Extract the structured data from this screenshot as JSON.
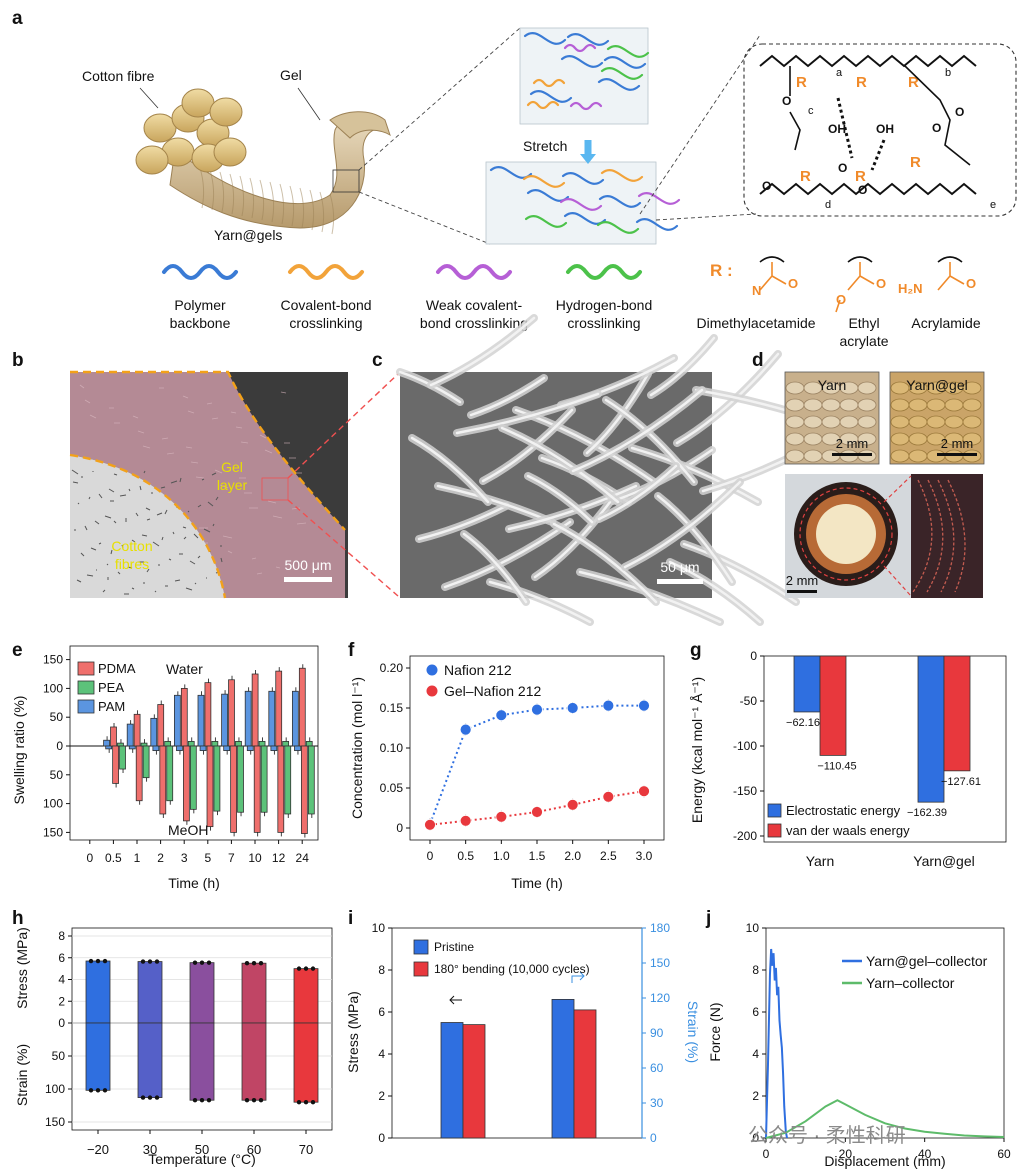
{
  "panels": {
    "a": "a",
    "b": "b",
    "c": "c",
    "d": "d",
    "e": "e",
    "f": "f",
    "g": "g",
    "h": "h",
    "i": "i",
    "j": "j"
  },
  "panel_a": {
    "cotton_fibre": "Cotton fibre",
    "gel": "Gel",
    "yarn_gels": "Yarn@gels",
    "stretch": "Stretch",
    "legend": [
      {
        "line1": "Polymer",
        "line2": "backbone",
        "color": "#3a7bd5"
      },
      {
        "line1": "Covalent-bond",
        "line2": "crosslinking",
        "color": "#f2a33a"
      },
      {
        "line1": "Weak covalent-",
        "line2": "bond crosslinking",
        "color": "#b65fd6"
      },
      {
        "line1": "Hydrogen-bond",
        "line2": "crosslinking",
        "color": "#4cc24a"
      }
    ],
    "r_label": "R :",
    "r_groups": [
      {
        "line1": "Dimethylacetamide",
        "line2": ""
      },
      {
        "line1": "Ethyl",
        "line2": "acrylate"
      },
      {
        "line1": "Acrylamide",
        "line2": ""
      }
    ],
    "chem": {
      "R": "R",
      "O": "O",
      "OH": "OH",
      "N": "N",
      "H2N": "H₂N",
      "a": "a",
      "b": "b",
      "c": "c",
      "d": "d",
      "e": "e"
    }
  },
  "panel_b": {
    "gel_layer_1": "Gel",
    "gel_layer_2": "layer",
    "cotton_1": "Cotton",
    "cotton_2": "fibres",
    "scale": "500 μm"
  },
  "panel_c": {
    "scale": "50 μm"
  },
  "panel_d": {
    "yarn": "Yarn",
    "yarn_gel": "Yarn@gel",
    "scale1": "2 mm",
    "scale2": "2 mm",
    "scale3": "2 mm"
  },
  "colors": {
    "blue": "#2f6fe0",
    "red": "#e8383d",
    "green": "#5dbb6a",
    "pdma": "#ef6f6c",
    "pea": "#5cc27a",
    "pam": "#5b95e0",
    "axis_blue": "#3a8fe0"
  },
  "chart_data": [
    {
      "panel": "e",
      "type": "bar",
      "ylabel": "Swelling ratio (%)",
      "xlabel": "Time (h)",
      "categories": [
        "0",
        "0.5",
        "1",
        "2",
        "3",
        "5",
        "7",
        "10",
        "12",
        "24"
      ],
      "ylim_upper": [
        0,
        150
      ],
      "ylim_lower": [
        0,
        150
      ],
      "upper_ticks": [
        "150",
        "100",
        "50",
        "0"
      ],
      "lower_ticks": [
        "50",
        "100",
        "150"
      ],
      "text_upper": "Water",
      "text_lower": "MeOH",
      "series": [
        {
          "name": "PDMA",
          "water": [
            0,
            33,
            55,
            72,
            100,
            110,
            115,
            125,
            130,
            135
          ],
          "meoh": [
            0,
            65,
            95,
            118,
            130,
            140,
            150,
            150,
            150,
            152
          ]
        },
        {
          "name": "PEA",
          "water": [
            0,
            5,
            5,
            8,
            8,
            8,
            8,
            8,
            8,
            8
          ],
          "meoh": [
            0,
            40,
            55,
            95,
            110,
            113,
            115,
            115,
            118,
            118
          ]
        },
        {
          "name": "PAM",
          "water": [
            0,
            10,
            38,
            48,
            88,
            88,
            90,
            95,
            95,
            95
          ],
          "meoh": [
            0,
            5,
            5,
            8,
            8,
            8,
            8,
            8,
            8,
            8
          ]
        }
      ]
    },
    {
      "panel": "f",
      "type": "scatter",
      "ylabel": "Concentration (mol l⁻¹)",
      "xlabel": "Time (h)",
      "xlim": [
        0,
        3.0
      ],
      "ylim": [
        0,
        0.2
      ],
      "xticks": [
        "0",
        "0.5",
        "1.0",
        "1.5",
        "2.0",
        "2.5",
        "3.0"
      ],
      "yticks": [
        "0",
        "0.05",
        "0.10",
        "0.15",
        "0.20"
      ],
      "series": [
        {
          "name": "Nafion 212",
          "x": [
            0,
            0.5,
            1.0,
            1.5,
            2.0,
            2.5,
            3.0
          ],
          "y": [
            0.005,
            0.123,
            0.141,
            0.148,
            0.15,
            0.153,
            0.153
          ]
        },
        {
          "name": "Gel–Nafion 212",
          "x": [
            0,
            0.5,
            1.0,
            1.5,
            2.0,
            2.5,
            3.0
          ],
          "y": [
            0.004,
            0.009,
            0.014,
            0.02,
            0.029,
            0.039,
            0.046
          ]
        }
      ]
    },
    {
      "panel": "g",
      "type": "bar",
      "ylabel": "Energy (kcal mol⁻¹ Å⁻¹)",
      "categories": [
        "Yarn",
        "Yarn@gel"
      ],
      "ylim": [
        -200,
        0
      ],
      "yticks": [
        "0",
        "-50",
        "-100",
        "-150",
        "-200"
      ],
      "series": [
        {
          "name": "Electrostatic energy",
          "values": [
            -62.16,
            -162.39
          ]
        },
        {
          "name": "van der waals energy",
          "values": [
            -110.45,
            -127.61
          ]
        }
      ],
      "value_labels": [
        [
          "−62.16",
          "−110.45"
        ],
        [
          "−162.39",
          "−127.61"
        ]
      ]
    },
    {
      "panel": "h",
      "type": "bar",
      "xlabel": "Temperature (°C)",
      "ylabel_upper": "Stress (MPa)",
      "ylabel_lower": "Strain (%)",
      "categories": [
        "−20",
        "30",
        "50",
        "60",
        "70"
      ],
      "stress": [
        5.7,
        5.65,
        5.55,
        5.5,
        5.0
      ],
      "strain": [
        102,
        113,
        117,
        117,
        120
      ],
      "upper_ticks": [
        "8",
        "6",
        "4",
        "2",
        "0"
      ],
      "lower_ticks": [
        "50",
        "100",
        "150"
      ],
      "bar_colors": [
        "#2f6fe0",
        "#5560c8",
        "#8a4f9e",
        "#c04565",
        "#e8383d"
      ]
    },
    {
      "panel": "i",
      "type": "bar",
      "ylabel": "Stress (MPa)",
      "ylabel_right": "Strain (%)",
      "ylim": [
        0,
        10
      ],
      "ylim_right": [
        0,
        180
      ],
      "yticks": [
        "0",
        "2",
        "4",
        "6",
        "8",
        "10"
      ],
      "yticks_right": [
        "0",
        "30",
        "60",
        "90",
        "120",
        "150",
        "180"
      ],
      "series": [
        {
          "name": "Pristine",
          "values": [
            5.5,
            6.6
          ]
        },
        {
          "name": "180° bending (10,000 cycles)",
          "values": [
            5.4,
            6.1
          ]
        }
      ]
    },
    {
      "panel": "j",
      "type": "line",
      "ylabel": "Force (N)",
      "xlabel": "Displacement (mm)",
      "xlim": [
        0,
        60
      ],
      "ylim": [
        0,
        10
      ],
      "xticks": [
        "0",
        "20",
        "40",
        "60"
      ],
      "yticks": [
        "0",
        "2",
        "4",
        "6",
        "8",
        "10"
      ],
      "series": [
        {
          "name": "Yarn@gel–collector",
          "x": [
            0,
            0.5,
            1,
            1.3,
            1.6,
            1.9,
            2.2,
            2.5,
            2.8,
            3.1,
            3.4,
            3.7,
            4.0,
            4.3,
            4.6,
            5.0,
            5.3
          ],
          "y": [
            0,
            3.5,
            7.8,
            9.0,
            8.2,
            8.8,
            7.5,
            8.1,
            6.8,
            7.2,
            5.6,
            4.9,
            4.3,
            3.1,
            1.5,
            0.3,
            0
          ]
        },
        {
          "name": "Yarn–collector",
          "x": [
            0,
            5,
            10,
            15,
            18,
            20,
            25,
            30,
            35,
            40,
            45,
            50,
            55,
            60
          ],
          "y": [
            0,
            0.25,
            0.8,
            1.5,
            1.8,
            1.6,
            1.1,
            0.7,
            0.45,
            0.3,
            0.2,
            0.12,
            0.08,
            0.05
          ]
        }
      ]
    }
  ],
  "watermark": "公众号 · 柔性科研"
}
